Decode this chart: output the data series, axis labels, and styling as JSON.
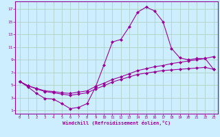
{
  "xlabel": "Windchill (Refroidissement éolien,°C)",
  "bg_color": "#cceeff",
  "grid_color": "#aaccbb",
  "line_color": "#990099",
  "x_ticks": [
    0,
    1,
    2,
    3,
    4,
    5,
    6,
    7,
    8,
    9,
    10,
    11,
    12,
    13,
    14,
    15,
    16,
    17,
    18,
    19,
    20,
    21,
    22,
    23
  ],
  "y_ticks": [
    1,
    3,
    5,
    7,
    9,
    11,
    13,
    15,
    17
  ],
  "ylim": [
    0.5,
    18.2
  ],
  "xlim": [
    -0.5,
    23.5
  ],
  "line1_x": [
    0,
    1,
    2,
    3,
    4,
    5,
    6,
    7,
    8,
    9,
    10,
    11,
    12,
    13,
    14,
    15,
    16,
    17,
    18,
    19,
    20,
    21,
    22,
    23
  ],
  "line1_y": [
    5.6,
    4.7,
    3.7,
    2.9,
    2.8,
    2.1,
    1.3,
    1.5,
    2.1,
    4.7,
    8.2,
    11.8,
    12.2,
    14.2,
    16.5,
    17.3,
    16.7,
    15.0,
    10.8,
    9.3,
    9.0,
    9.2,
    9.2,
    7.5
  ],
  "line2_x": [
    0,
    1,
    2,
    3,
    4,
    5,
    6,
    7,
    8,
    9,
    10,
    11,
    12,
    13,
    14,
    15,
    16,
    17,
    18,
    19,
    20,
    21,
    22,
    23
  ],
  "line2_y": [
    5.6,
    4.9,
    4.5,
    4.1,
    4.0,
    3.8,
    3.7,
    3.9,
    4.1,
    4.8,
    5.3,
    5.9,
    6.3,
    6.8,
    7.3,
    7.6,
    7.9,
    8.1,
    8.4,
    8.6,
    8.8,
    9.0,
    9.2,
    9.5
  ],
  "line3_x": [
    0,
    1,
    2,
    3,
    4,
    5,
    6,
    7,
    8,
    9,
    10,
    11,
    12,
    13,
    14,
    15,
    16,
    17,
    18,
    19,
    20,
    21,
    22,
    23
  ],
  "line3_y": [
    5.6,
    4.9,
    4.4,
    4.0,
    3.8,
    3.6,
    3.4,
    3.6,
    3.8,
    4.4,
    4.9,
    5.5,
    5.9,
    6.3,
    6.7,
    6.9,
    7.1,
    7.3,
    7.4,
    7.5,
    7.6,
    7.7,
    7.8,
    7.5
  ]
}
